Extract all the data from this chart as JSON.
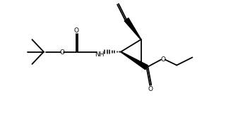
{
  "bg_color": "#ffffff",
  "line_color": "#000000",
  "lw": 1.3,
  "figsize": [
    3.2,
    1.66
  ],
  "dpi": 100,
  "xlim": [
    0,
    10
  ],
  "ylim": [
    0,
    5.2
  ]
}
